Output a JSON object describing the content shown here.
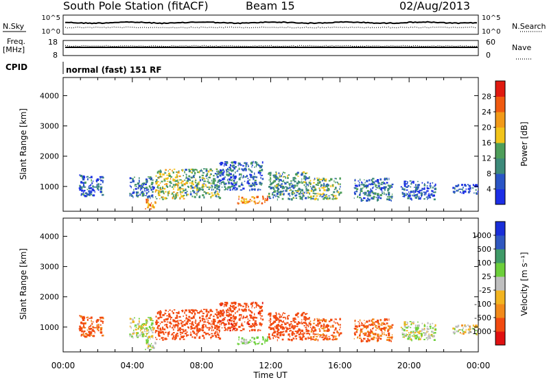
{
  "header": {
    "station": "South Pole Station (fitACF)",
    "beam": "Beam 15",
    "date": "02/Aug/2013"
  },
  "sky_panel": {
    "left_label": "N.Sky",
    "right_label": "N.Search",
    "ticks_left": [
      "10^5",
      "10^0"
    ],
    "ticks_right": [
      "10^5",
      "10^0"
    ]
  },
  "freq_panel": {
    "left_label_1": "Freq.",
    "left_label_2": "[MHz]",
    "right_label": "Nave",
    "ticks_left": [
      "18",
      "8"
    ],
    "ticks_right": [
      "60",
      "0"
    ]
  },
  "cpid": {
    "label": "CPID",
    "value": "normal (fast) 151 RF"
  },
  "colors": {
    "power": [
      "#1c2ee6",
      "#2a55c6",
      "#3d8a7a",
      "#4e9e5a",
      "#f2c41a",
      "#f29a18",
      "#f05a10",
      "#e01a10"
    ],
    "velocity": [
      "#e01010",
      "#f24a10",
      "#f28a1a",
      "#f2b420",
      "#bfbfbf",
      "#6ccf3a",
      "#3f9a68",
      "#3058c0",
      "#1a2ed8"
    ]
  },
  "chart_data": [
    {
      "type": "heatmap",
      "name": "power",
      "xlabel": "",
      "ylabel": "Slant Range [km]",
      "x_ticks": [
        "00:00",
        "04:00",
        "08:00",
        "12:00",
        "16:00",
        "20:00",
        "00:00"
      ],
      "xlim_hours": [
        0,
        24
      ],
      "y_ticks": [
        1000,
        2000,
        3000,
        4000
      ],
      "ylim_km": [
        180,
        4600
      ],
      "colorbar": {
        "label": "Power [dB]",
        "ticks": [
          "4",
          "8",
          "12",
          "16",
          "20",
          "24",
          "28"
        ],
        "range": [
          0,
          30
        ]
      },
      "echo_regions": [
        {
          "t0": 0.9,
          "t1": 2.3,
          "r0": 700,
          "r1": 1400,
          "value": 6
        },
        {
          "t0": 3.8,
          "t1": 5.2,
          "r0": 650,
          "r1": 1350,
          "value": 8
        },
        {
          "t0": 4.7,
          "t1": 5.3,
          "r0": 250,
          "r1": 600,
          "value": 22
        },
        {
          "t0": 5.3,
          "t1": 7.0,
          "r0": 600,
          "r1": 1600,
          "value": 16
        },
        {
          "t0": 7.0,
          "t1": 9.0,
          "r0": 650,
          "r1": 1600,
          "value": 12
        },
        {
          "t0": 9.0,
          "t1": 11.5,
          "r0": 900,
          "r1": 1850,
          "value": 7
        },
        {
          "t0": 10.0,
          "t1": 11.8,
          "r0": 450,
          "r1": 700,
          "value": 22
        },
        {
          "t0": 11.8,
          "t1": 14.2,
          "r0": 600,
          "r1": 1500,
          "value": 10
        },
        {
          "t0": 14.2,
          "t1": 16.0,
          "r0": 600,
          "r1": 1300,
          "value": 12
        },
        {
          "t0": 16.8,
          "t1": 19.0,
          "r0": 550,
          "r1": 1300,
          "value": 8
        },
        {
          "t0": 19.5,
          "t1": 21.5,
          "r0": 600,
          "r1": 1200,
          "value": 5
        },
        {
          "t0": 22.5,
          "t1": 24.0,
          "r0": 800,
          "r1": 1100,
          "value": 4
        }
      ]
    },
    {
      "type": "heatmap",
      "name": "velocity",
      "xlabel": "Time UT",
      "ylabel": "Slant Range [km]",
      "x_ticks": [
        "00:00",
        "04:00",
        "08:00",
        "12:00",
        "16:00",
        "20:00",
        "00:00"
      ],
      "xlim_hours": [
        0,
        24
      ],
      "y_ticks": [
        1000,
        2000,
        3000,
        4000
      ],
      "ylim_km": [
        180,
        4600
      ],
      "colorbar": {
        "label": "Velocity [m s⁻¹]",
        "ticks": [
          "1000",
          "500",
          "100",
          "25",
          "-25",
          "-100",
          "-500",
          "-1000"
        ],
        "range": [
          -1200,
          1200
        ]
      },
      "echo_regions": [
        {
          "t0": 0.9,
          "t1": 2.3,
          "r0": 700,
          "r1": 1400,
          "value": -150
        },
        {
          "t0": 3.8,
          "t1": 5.2,
          "r0": 650,
          "r1": 1350,
          "value": 80
        },
        {
          "t0": 4.7,
          "t1": 5.3,
          "r0": 250,
          "r1": 600,
          "value": 100
        },
        {
          "t0": 5.3,
          "t1": 7.0,
          "r0": 600,
          "r1": 1600,
          "value": -250
        },
        {
          "t0": 7.0,
          "t1": 9.0,
          "r0": 650,
          "r1": 1600,
          "value": -300
        },
        {
          "t0": 9.0,
          "t1": 11.5,
          "r0": 900,
          "r1": 1850,
          "value": -350
        },
        {
          "t0": 10.0,
          "t1": 11.8,
          "r0": 450,
          "r1": 700,
          "value": 150
        },
        {
          "t0": 11.8,
          "t1": 14.2,
          "r0": 600,
          "r1": 1500,
          "value": -200
        },
        {
          "t0": 14.2,
          "t1": 16.0,
          "r0": 600,
          "r1": 1300,
          "value": -150
        },
        {
          "t0": 16.8,
          "t1": 19.0,
          "r0": 550,
          "r1": 1300,
          "value": -120
        },
        {
          "t0": 19.5,
          "t1": 21.5,
          "r0": 600,
          "r1": 1200,
          "value": 80
        },
        {
          "t0": 22.5,
          "t1": 24.0,
          "r0": 800,
          "r1": 1100,
          "value": 40
        }
      ]
    }
  ]
}
